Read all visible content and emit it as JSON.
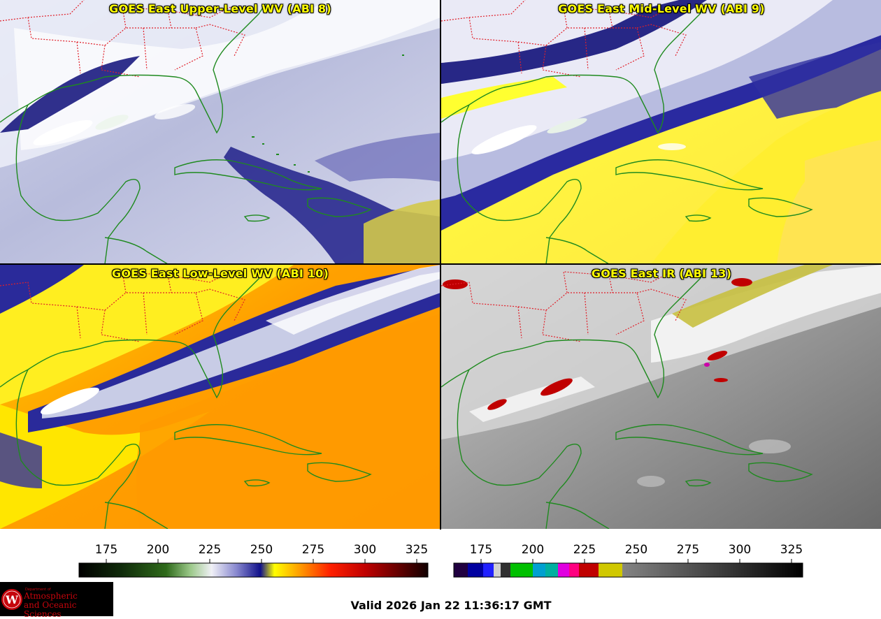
{
  "panels": [
    {
      "title": "GOES East Upper-Level WV (ABI 8)"
    },
    {
      "title": "GOES East Mid-Level WV (ABI 9)"
    },
    {
      "title": "GOES East Low-Level WV (ABI 10)"
    },
    {
      "title": "GOES East IR (ABI 13)"
    }
  ],
  "colorbars": {
    "wv": {
      "ticks": [
        "175",
        "200",
        "225",
        "250",
        "275",
        "300",
        "325"
      ]
    },
    "ir": {
      "ticks": [
        "175",
        "200",
        "225",
        "250",
        "275",
        "300",
        "325"
      ]
    }
  },
  "logo": {
    "dept": "Department of",
    "line1": "Atmospheric",
    "line2": "and Oceanic Sciences",
    "seal_letter": "W"
  },
  "valid_time": "Valid 2026 Jan 22 11:36:17 GMT",
  "colors": {
    "coast": "#1f8a1f",
    "state_border": "#e0202a",
    "title": "#ffff00"
  }
}
